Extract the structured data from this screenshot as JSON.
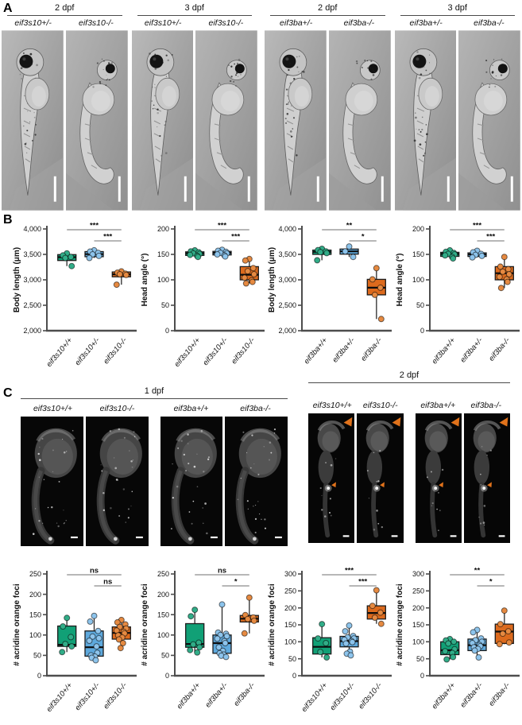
{
  "panels": {
    "a": "A",
    "b": "B",
    "c": "C"
  },
  "colors": {
    "green": {
      "fill": "#11a076",
      "dot": "#31ad88"
    },
    "blue": {
      "fill": "#5ea9dd",
      "dot": "#8dc4ec"
    },
    "orange": {
      "fill": "#dc6a1d",
      "dot": "#e68a41"
    },
    "arrow": "#e0721b",
    "axis": "#4d4d4d"
  },
  "panel_a": {
    "label": "A",
    "groups": [
      {
        "title": "2 dpf",
        "images": [
          {
            "label": "eif3s10+/-",
            "type": "dic-straight"
          },
          {
            "label": "eif3s10-/-",
            "type": "dic-curved"
          }
        ]
      },
      {
        "title": "3 dpf",
        "images": [
          {
            "label": "eif3s10+/-",
            "type": "dic-straight"
          },
          {
            "label": "eif3s10-/-",
            "type": "dic-curved"
          }
        ]
      },
      {
        "title": "2 dpf",
        "images": [
          {
            "label": "eif3ba+/-",
            "type": "dic-straight"
          },
          {
            "label": "eif3ba-/-",
            "type": "dic-curved"
          }
        ]
      },
      {
        "title": "3 dpf",
        "images": [
          {
            "label": "eif3ba+/-",
            "type": "dic-straight"
          },
          {
            "label": "eif3ba-/-",
            "type": "dic-curved"
          }
        ]
      }
    ]
  },
  "panel_c": {
    "label": "C",
    "sections": [
      {
        "title": "1 dpf",
        "images": [
          {
            "label": "eif3s10+/+",
            "type": "fluor-1dpf"
          },
          {
            "label": "eif3s10-/-",
            "type": "fluor-1dpf"
          },
          {
            "label": "eif3ba+/+",
            "type": "fluor-1dpf"
          },
          {
            "label": "eif3ba-/-",
            "type": "fluor-1dpf"
          }
        ]
      },
      {
        "title": "2 dpf",
        "images": [
          {
            "label": "eif3s10+/+",
            "type": "fluor-2dpf"
          },
          {
            "label": "eif3s10-/-",
            "type": "fluor-2dpf"
          },
          {
            "label": "eif3ba+/+",
            "type": "fluor-2dpf"
          },
          {
            "label": "eif3ba-/-",
            "type": "fluor-2dpf"
          }
        ]
      }
    ]
  },
  "chart_data": [
    {
      "type": "box",
      "title": "",
      "xlabel": "",
      "ylabel": "Body length (μm)",
      "ylim": [
        2000,
        4000
      ],
      "yticks": [
        2000,
        2500,
        3000,
        3500,
        4000
      ],
      "categories": [
        "eif3s10+/+",
        "eif3s10+/-",
        "eif3s10-/-"
      ],
      "groups": [
        {
          "label": "eif3s10+/+",
          "color": "green",
          "box": [
            3380,
            3495
          ],
          "median": 3445,
          "whiskers": [
            3270,
            3520
          ],
          "points": [
            3520,
            3480,
            3450,
            3430,
            3270
          ]
        },
        {
          "label": "eif3s10+/-",
          "color": "blue",
          "box": [
            3455,
            3555
          ],
          "median": 3505,
          "whiskers": [
            3430,
            3580
          ],
          "points": [
            3580,
            3555,
            3530,
            3500,
            3470,
            3430
          ]
        },
        {
          "label": "eif3s10-/-",
          "color": "orange",
          "box": [
            3060,
            3155
          ],
          "median": 3110,
          "whiskers": [
            2905,
            3165
          ],
          "points": [
            3165,
            3140,
            3120,
            3110,
            3095,
            2905
          ]
        }
      ],
      "significance": [
        {
          "from": 0,
          "to": 2,
          "label": "***"
        },
        {
          "from": 1,
          "to": 2,
          "label": "***"
        }
      ]
    },
    {
      "type": "box",
      "title": "",
      "xlabel": "",
      "ylabel": "Head angle (°)",
      "ylim": [
        0,
        200
      ],
      "yticks": [
        0,
        50,
        100,
        150,
        200
      ],
      "categories": [
        "eif3s10+/+",
        "eif3s10+/-",
        "eif3s10-/-"
      ],
      "groups": [
        {
          "label": "eif3s10+/+",
          "color": "green",
          "box": [
            148,
            155
          ],
          "median": 152,
          "whiskers": [
            145,
            158
          ],
          "points": [
            158,
            156,
            154,
            152,
            151,
            149,
            147,
            145
          ]
        },
        {
          "label": "eif3s10+/-",
          "color": "blue",
          "box": [
            149,
            156
          ],
          "median": 153,
          "whiskers": [
            146,
            159
          ],
          "points": [
            159,
            157,
            155,
            153,
            152,
            150,
            148,
            146
          ]
        },
        {
          "label": "eif3s10-/-",
          "color": "orange",
          "box": [
            100,
            126
          ],
          "median": 110,
          "whiskers": [
            93,
            141
          ],
          "points": [
            141,
            138,
            123,
            117,
            111,
            104,
            99,
            96,
            93
          ]
        }
      ],
      "significance": [
        {
          "from": 0,
          "to": 2,
          "label": "***"
        },
        {
          "from": 1,
          "to": 2,
          "label": "***"
        }
      ]
    },
    {
      "type": "box",
      "title": "",
      "xlabel": "",
      "ylabel": "Body length (μm)",
      "ylim": [
        2000,
        4000
      ],
      "yticks": [
        2000,
        2500,
        3000,
        3500,
        4000
      ],
      "categories": [
        "eif3ba+/+",
        "eif3ba+/-",
        "eif3ba-/-"
      ],
      "groups": [
        {
          "label": "eif3ba+/+",
          "color": "green",
          "box": [
            3500,
            3585
          ],
          "median": 3550,
          "whiskers": [
            3385,
            3610
          ],
          "points": [
            3610,
            3585,
            3560,
            3545,
            3525,
            3385
          ]
        },
        {
          "label": "eif3ba+/-",
          "color": "blue",
          "box": [
            3505,
            3605
          ],
          "median": 3560,
          "whiskers": [
            3450,
            3655
          ],
          "points": [
            3655,
            3560,
            3450
          ]
        },
        {
          "label": "eif3ba-/-",
          "color": "orange",
          "box": [
            2705,
            3010
          ],
          "median": 2845,
          "whiskers": [
            2230,
            3230
          ],
          "points": [
            3230,
            3010,
            2845,
            2705,
            2230
          ]
        }
      ],
      "significance": [
        {
          "from": 0,
          "to": 2,
          "label": "**"
        },
        {
          "from": 1,
          "to": 2,
          "label": "*"
        }
      ]
    },
    {
      "type": "box",
      "title": "",
      "xlabel": "",
      "ylabel": "Head angle (°)",
      "ylim": [
        0,
        200
      ],
      "yticks": [
        0,
        50,
        100,
        150,
        200
      ],
      "categories": [
        "eif3ba+/+",
        "eif3ba+/-",
        "eif3ba-/-"
      ],
      "groups": [
        {
          "label": "eif3ba+/+",
          "color": "green",
          "box": [
            146,
            154
          ],
          "median": 151,
          "whiskers": [
            142,
            158
          ],
          "points": [
            158,
            155,
            153,
            151,
            150,
            148,
            145,
            142
          ]
        },
        {
          "label": "eif3ba+/-",
          "color": "blue",
          "box": [
            146,
            153
          ],
          "median": 150,
          "whiskers": [
            144,
            157
          ],
          "points": [
            157,
            154,
            151,
            149,
            147,
            144
          ]
        },
        {
          "label": "eif3ba-/-",
          "color": "orange",
          "box": [
            100,
            126
          ],
          "median": 113,
          "whiskers": [
            84,
            145
          ],
          "points": [
            145,
            126,
            121,
            116,
            111,
            106,
            101,
            96,
            84
          ]
        }
      ],
      "significance": [
        {
          "from": 0,
          "to": 2,
          "label": "***"
        },
        {
          "from": 1,
          "to": 2,
          "label": "***"
        }
      ]
    },
    {
      "type": "box",
      "title": "",
      "xlabel": "",
      "ylabel": "# acridine orange foci",
      "ylim": [
        0,
        250
      ],
      "yticks": [
        0,
        50,
        100,
        150,
        200,
        250
      ],
      "categories": [
        "eif3s10+/+",
        "eif3s10+/-",
        "eif3s10-/-"
      ],
      "groups": [
        {
          "label": "eif3s10+/+",
          "color": "green",
          "box": [
            72,
            122
          ],
          "median": 76,
          "whiskers": [
            58,
            142
          ],
          "points": [
            142,
            121,
            95,
            78,
            72,
            58
          ]
        },
        {
          "label": "eif3s10+/-",
          "color": "blue",
          "box": [
            48,
            110
          ],
          "median": 70,
          "whiskers": [
            38,
            147
          ],
          "points": [
            147,
            133,
            110,
            96,
            92,
            86,
            72,
            56,
            50,
            47,
            44,
            38
          ]
        },
        {
          "label": "eif3s10-/-",
          "color": "orange",
          "box": [
            90,
            120
          ],
          "median": 105,
          "whiskers": [
            68,
            137
          ],
          "points": [
            137,
            131,
            126,
            120,
            116,
            111,
            108,
            104,
            99,
            94,
            89,
            80,
            68
          ]
        }
      ],
      "significance": [
        {
          "from": 0,
          "to": 2,
          "label": "ns"
        },
        {
          "from": 1,
          "to": 2,
          "label": "ns"
        }
      ]
    },
    {
      "type": "box",
      "title": "",
      "xlabel": "",
      "ylabel": "# acridine orange foci",
      "ylim": [
        0,
        250
      ],
      "yticks": [
        0,
        50,
        100,
        150,
        200,
        250
      ],
      "categories": [
        "eif3ba+/+",
        "eif3ba+/-",
        "eif3ba-/-"
      ],
      "groups": [
        {
          "label": "eif3ba+/+",
          "color": "green",
          "box": [
            70,
            128
          ],
          "median": 78,
          "whiskers": [
            57,
            162
          ],
          "points": [
            162,
            146,
            81,
            77,
            70,
            63,
            57
          ]
        },
        {
          "label": "eif3ba+/-",
          "color": "blue",
          "box": [
            55,
            100
          ],
          "median": 80,
          "whiskers": [
            46,
            175
          ],
          "points": [
            175,
            106,
            103,
            100,
            97,
            91,
            85,
            80,
            70,
            61,
            55,
            52,
            49,
            46
          ]
        },
        {
          "label": "eif3ba-/-",
          "color": "orange",
          "box": [
            132,
            148
          ],
          "median": 140,
          "whiskers": [
            104,
            192
          ],
          "points": [
            192,
            149,
            143,
            139,
            135,
            104
          ]
        }
      ],
      "significance": [
        {
          "from": 0,
          "to": 2,
          "label": "ns"
        },
        {
          "from": 1,
          "to": 2,
          "label": "*"
        }
      ]
    },
    {
      "type": "box",
      "title": "",
      "xlabel": "",
      "ylabel": "# acridine orange foci",
      "ylim": [
        0,
        300
      ],
      "yticks": [
        0,
        50,
        100,
        150,
        200,
        250,
        300
      ],
      "categories": [
        "eif3s10+/+",
        "eif3s10+/-",
        "eif3s10-/-"
      ],
      "groups": [
        {
          "label": "eif3s10+/+",
          "color": "green",
          "box": [
            64,
            112
          ],
          "median": 85,
          "whiskers": [
            54,
            152
          ],
          "points": [
            152,
            110,
            96,
            70,
            54
          ]
        },
        {
          "label": "eif3s10+/-",
          "color": "blue",
          "box": [
            85,
            116
          ],
          "median": 102,
          "whiskers": [
            60,
            148
          ],
          "points": [
            148,
            131,
            117,
            113,
            110,
            106,
            102,
            99,
            95,
            71,
            65,
            60
          ]
        },
        {
          "label": "eif3s10-/-",
          "color": "orange",
          "box": [
            167,
            206
          ],
          "median": 185,
          "whiskers": [
            153,
            252
          ],
          "points": [
            252,
            206,
            186,
            171,
            153
          ]
        }
      ],
      "significance": [
        {
          "from": 0,
          "to": 2,
          "label": "***"
        },
        {
          "from": 1,
          "to": 2,
          "label": "***"
        }
      ]
    },
    {
      "type": "box",
      "title": "",
      "xlabel": "",
      "ylabel": "# acridine orange foci",
      "ylim": [
        0,
        300
      ],
      "yticks": [
        0,
        50,
        100,
        150,
        200,
        250,
        300
      ],
      "categories": [
        "eif3ba+/+",
        "eif3ba+/-",
        "eif3ba-/-"
      ],
      "groups": [
        {
          "label": "eif3ba+/+",
          "color": "green",
          "box": [
            62,
            100
          ],
          "median": 75,
          "whiskers": [
            48,
            108
          ],
          "points": [
            108,
            104,
            100,
            95,
            78,
            72,
            67,
            55,
            48
          ]
        },
        {
          "label": "eif3ba+/-",
          "color": "blue",
          "box": [
            74,
            108
          ],
          "median": 90,
          "whiskers": [
            54,
            135
          ],
          "points": [
            135,
            128,
            110,
            105,
            100,
            96,
            91,
            87,
            84,
            79,
            74,
            54
          ]
        },
        {
          "label": "eif3ba-/-",
          "color": "orange",
          "box": [
            95,
            152
          ],
          "median": 130,
          "whiskers": [
            93,
            192
          ],
          "points": [
            192,
            152,
            131,
            124,
            98,
            93
          ]
        }
      ],
      "significance": [
        {
          "from": 0,
          "to": 2,
          "label": "**"
        },
        {
          "from": 1,
          "to": 2,
          "label": "*"
        }
      ]
    }
  ]
}
